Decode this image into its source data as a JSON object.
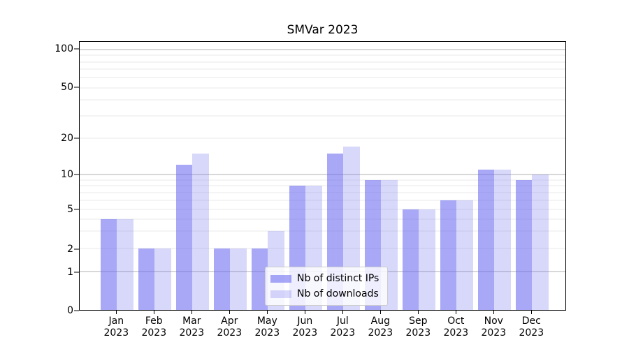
{
  "title": "SMVar 2023",
  "chart_data": {
    "type": "bar",
    "title": "SMVar 2023",
    "xlabel": "",
    "ylabel": "",
    "x_tick_months": [
      "Jan",
      "Feb",
      "Mar",
      "Apr",
      "May",
      "Jun",
      "Jul",
      "Aug",
      "Sep",
      "Oct",
      "Nov",
      "Dec"
    ],
    "x_tick_year": "2023",
    "series": [
      {
        "name": "Nb of distinct IPs",
        "color": "rgba(100,100,240,0.56)",
        "values": [
          4,
          2,
          12,
          2,
          2,
          8,
          15,
          9,
          5,
          6,
          11,
          9
        ]
      },
      {
        "name": "Nb of downloads",
        "color": "rgba(100,100,240,0.25)",
        "values": [
          4,
          2,
          15,
          2,
          3,
          8,
          17,
          9,
          5,
          6,
          11,
          10
        ]
      }
    ],
    "yscale": "symlog",
    "ylim": [
      0,
      116
    ],
    "yticks_labeled": [
      0,
      1,
      2,
      5,
      10,
      20,
      50,
      100
    ],
    "gridlines_major": [
      1,
      10,
      100
    ],
    "gridlines_minor": [
      2,
      3,
      4,
      5,
      6,
      7,
      8,
      9,
      20,
      30,
      40,
      50,
      60,
      70,
      80,
      90
    ],
    "grid": true,
    "legend_position": "lower center inside"
  },
  "colors": {
    "bar_distinct_ips": "rgba(100,100,240,0.56)",
    "bar_downloads": "rgba(100,100,240,0.25)",
    "grid_major": "#b2b2b2",
    "grid_minor": "#e8e8e8",
    "spine": "#000000",
    "text": "#000000",
    "legend_border": "#cccccc",
    "legend_background": "rgba(255,255,255,0.8)"
  }
}
